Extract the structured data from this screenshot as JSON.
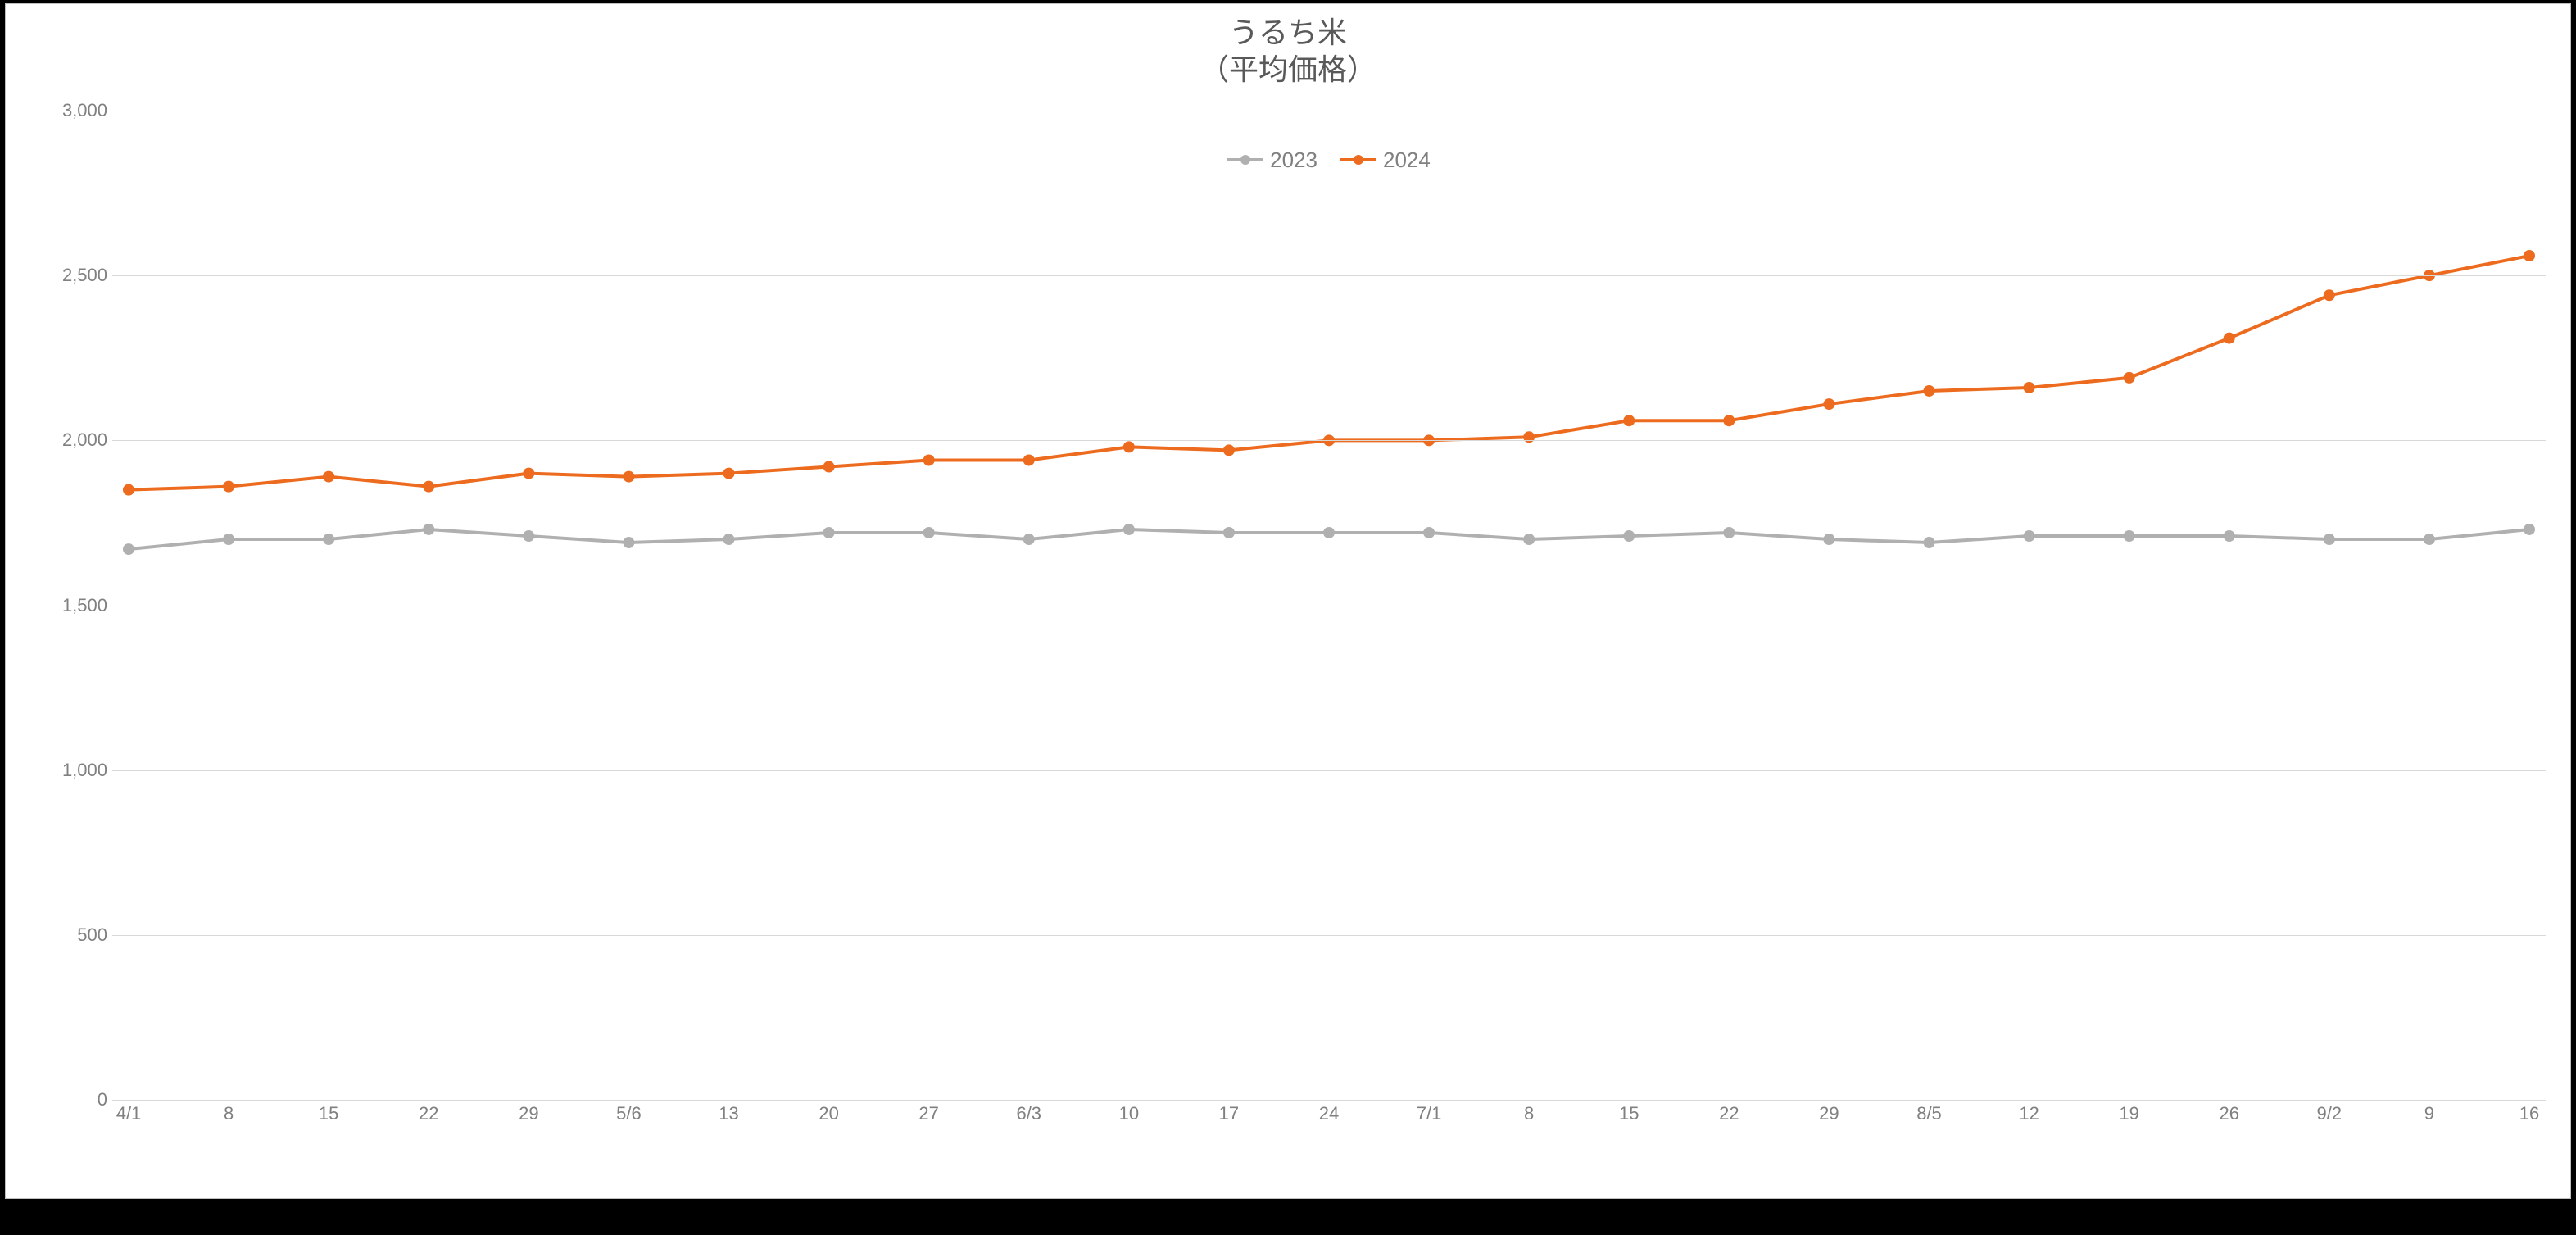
{
  "chart": {
    "type": "line",
    "title_line1": "うるち米",
    "title_line2": "（平均価格）",
    "title_color": "#595959",
    "title_fontsize": 36,
    "background_color": "#ffffff",
    "frame_border_color": "#bfbfbf",
    "grid_color": "#d9d9d9",
    "axis_label_color": "#808080",
    "axis_label_fontsize": 22,
    "legend_fontsize": 26,
    "ylim": [
      0,
      3000
    ],
    "ytick_step": 500,
    "ytick_labels": [
      "0",
      "500",
      "1,000",
      "1,500",
      "2,000",
      "2,500",
      "3,000"
    ],
    "x_labels": [
      "4/1",
      "8",
      "15",
      "22",
      "29",
      "5/6",
      "13",
      "20",
      "27",
      "6/3",
      "10",
      "17",
      "24",
      "7/1",
      "8",
      "15",
      "22",
      "29",
      "8/5",
      "12",
      "19",
      "26",
      "9/2",
      "9",
      "16"
    ],
    "line_width": 4,
    "marker_radius": 7,
    "series": [
      {
        "name": "2023",
        "color": "#b0b0b0",
        "values": [
          1670,
          1700,
          1700,
          1730,
          1710,
          1690,
          1700,
          1720,
          1720,
          1700,
          1730,
          1720,
          1720,
          1720,
          1700,
          1710,
          1720,
          1700,
          1690,
          1710,
          1710,
          1710,
          1700,
          1700,
          1730
        ]
      },
      {
        "name": "2024",
        "color": "#ed6b1f",
        "values": [
          1850,
          1860,
          1890,
          1860,
          1900,
          1890,
          1900,
          1920,
          1940,
          1940,
          1980,
          1970,
          2000,
          2000,
          2010,
          2060,
          2060,
          2110,
          2150,
          2160,
          2190,
          2310,
          2440,
          2500,
          2560
        ]
      }
    ]
  }
}
